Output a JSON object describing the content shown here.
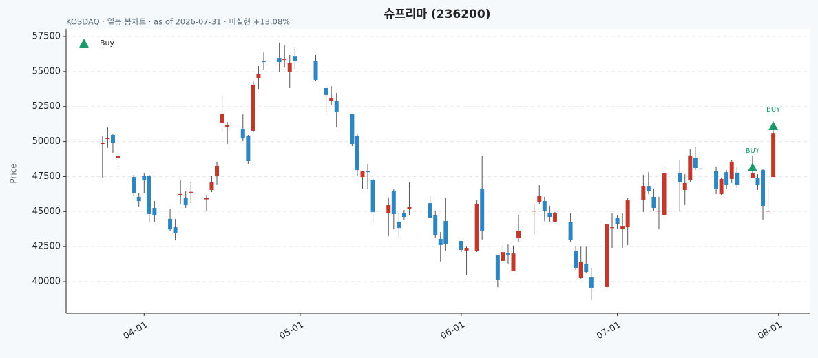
{
  "chart_data": {
    "type": "candlestick",
    "title": "슈프리마 (236200)",
    "subtitle": "KOSDAQ · 일봉 봉차트 · as of 2026-07-31 · 미실현 +13.08%",
    "y_label": "Price",
    "x": [
      "03-24",
      "03-25",
      "03-26",
      "03-27",
      "03-30",
      "03-31",
      "04-01",
      "04-02",
      "04-03",
      "04-06",
      "04-07",
      "04-08",
      "04-09",
      "04-10",
      "04-13",
      "04-14",
      "04-15",
      "04-16",
      "04-17",
      "04-20",
      "04-21",
      "04-22",
      "04-23",
      "04-24",
      "04-27",
      "04-28",
      "04-29",
      "04-30",
      "05-04",
      "05-06",
      "05-07",
      "05-08",
      "05-11",
      "05-12",
      "05-13",
      "05-14",
      "05-15",
      "05-18",
      "05-19",
      "05-20",
      "05-21",
      "05-22",
      "05-26",
      "05-27",
      "05-28",
      "05-29",
      "06-01",
      "06-02",
      "06-04",
      "06-05",
      "06-08",
      "06-09",
      "06-10",
      "06-11",
      "06-12",
      "06-15",
      "06-16",
      "06-17",
      "06-18",
      "06-19",
      "06-22",
      "06-23",
      "06-24",
      "06-25",
      "06-26",
      "06-29",
      "06-30",
      "07-01",
      "07-02",
      "07-03",
      "07-06",
      "07-07",
      "07-08",
      "07-09",
      "07-10",
      "07-13",
      "07-14",
      "07-15",
      "07-16",
      "07-17",
      "07-20",
      "07-21",
      "07-22",
      "07-23",
      "07-24",
      "07-27",
      "07-28",
      "07-29",
      "07-30",
      "07-31"
    ],
    "open": [
      49830,
      50170,
      50470,
      48850,
      47470,
      46050,
      47520,
      47570,
      45260,
      44480,
      43880,
      46200,
      45990,
      46340,
      45870,
      46540,
      47520,
      51350,
      51010,
      50910,
      50370,
      50770,
      54500,
      55770,
      55970,
      55820,
      54990,
      56070,
      55780,
      53810,
      52920,
      52880,
      51990,
      50420,
      47470,
      47910,
      47280,
      44870,
      46440,
      44280,
      44870,
      45210,
      45600,
      44720,
      43050,
      44330,
      42900,
      42210,
      42210,
      46640,
      41920,
      41480,
      42060,
      40740,
      43100,
      45010,
      45700,
      45750,
      44920,
      44280,
      44280,
      42160,
      40250,
      41280,
      40300,
      39610,
      43830,
      44570,
      43740,
      43880,
      45850,
      46830,
      46050,
      45010,
      44720,
      47770,
      46540,
      47230,
      48850,
      48070,
      47870,
      46240,
      47810,
      47330,
      47770,
      47420,
      47420,
      47960,
      45010,
      47470
    ],
    "high": [
      50370,
      51010,
      50570,
      49780,
      47620,
      46340,
      47720,
      47620,
      45750,
      45210,
      44480,
      47230,
      46440,
      47080,
      46190,
      47520,
      48560,
      53220,
      51400,
      51940,
      50470,
      54300,
      55390,
      56370,
      57060,
      56860,
      56180,
      56760,
      56180,
      53960,
      53960,
      53470,
      51990,
      50520,
      47920,
      48410,
      47430,
      46000,
      46590,
      44870,
      45110,
      47080,
      46100,
      45060,
      43540,
      45950,
      42900,
      42510,
      45800,
      48990,
      41920,
      42600,
      42650,
      42550,
      44720,
      45550,
      46880,
      46050,
      45410,
      44970,
      44870,
      42500,
      42500,
      42500,
      40980,
      44180,
      44870,
      44720,
      44870,
      45950,
      47620,
      47810,
      46640,
      46050,
      48260,
      48700,
      47670,
      49440,
      49630,
      48070,
      48210,
      47430,
      47960,
      48650,
      48160,
      49000,
      47670,
      48060,
      46930,
      50810
    ],
    "low": [
      47420,
      49540,
      49190,
      48210,
      46100,
      45360,
      46340,
      44280,
      44280,
      43590,
      42950,
      45510,
      45260,
      45600,
      45060,
      46390,
      46930,
      50770,
      49830,
      50030,
      48410,
      50670,
      53710,
      55090,
      54990,
      55290,
      53810,
      55190,
      54300,
      52140,
      52630,
      51010,
      49680,
      47570,
      46640,
      46590,
      44280,
      43240,
      43740,
      43150,
      44370,
      44770,
      44480,
      43100,
      41430,
      42210,
      42110,
      40440,
      42110,
      43000,
      39600,
      41230,
      41280,
      40740,
      42800,
      43390,
      45510,
      44330,
      44280,
      44230,
      42800,
      40830,
      40200,
      40590,
      38670,
      39510,
      42410,
      43780,
      42410,
      42600,
      44970,
      46240,
      45060,
      43740,
      44670,
      45010,
      45460,
      47130,
      47960,
      48010,
      46240,
      46190,
      46590,
      47030,
      46690,
      47370,
      46540,
      44420,
      45010,
      47470
    ],
    "close": [
      49930,
      50270,
      49880,
      48950,
      46340,
      45750,
      47230,
      44820,
      44720,
      43730,
      43440,
      46250,
      45460,
      46400,
      45950,
      47080,
      48260,
      51990,
      51210,
      50220,
      48600,
      54060,
      54800,
      55680,
      55680,
      55920,
      55590,
      55780,
      54400,
      53320,
      53080,
      52090,
      49830,
      47960,
      47870,
      47810,
      44960,
      45460,
      44820,
      43830,
      44620,
      45310,
      44570,
      43340,
      42610,
      42660,
      42260,
      42410,
      45560,
      43640,
      40150,
      42110,
      41920,
      42010,
      43640,
      45060,
      46100,
      45060,
      44620,
      44870,
      42990,
      40980,
      41430,
      40690,
      39560,
      44080,
      43880,
      44130,
      43980,
      45850,
      46830,
      46440,
      45260,
      45060,
      47720,
      47080,
      47030,
      49000,
      48110,
      48010,
      46590,
      47330,
      46930,
      48560,
      46930,
      47720,
      46930,
      45410,
      45060,
      50610
    ],
    "up_color": "#c0392b",
    "down_color": "#2e86c1",
    "markers": {
      "name": "Buy",
      "color": "#1a9a6a",
      "x": [
        "07-27",
        "07-31"
      ],
      "values": [
        48160,
        51110
      ],
      "labels": [
        "BUY",
        "BUY"
      ]
    },
    "xlim": [
      "03-17",
      "08-07"
    ],
    "xticks": [
      "04-01",
      "05-01",
      "06-01",
      "07-01",
      "08-01"
    ],
    "ylim": [
      37740,
      58040
    ],
    "yticks": [
      40000,
      42500,
      45000,
      47500,
      50000,
      52500,
      55000,
      57500
    ],
    "grid": true,
    "legend": "upper left"
  }
}
